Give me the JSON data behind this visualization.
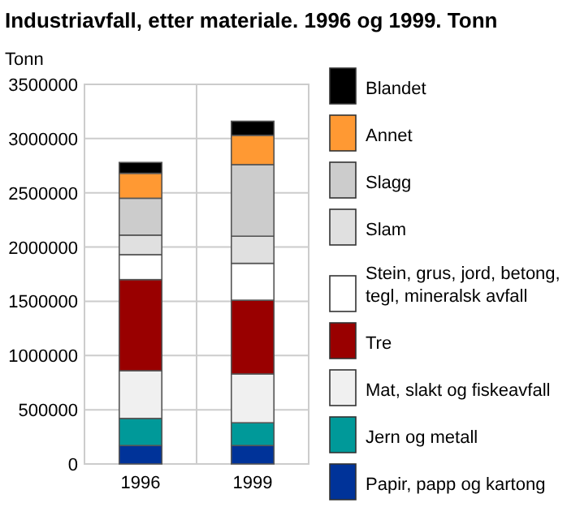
{
  "chart_data": {
    "type": "bar",
    "title": "Industriavfall, etter materiale. 1996 og 1999. Tonn",
    "ylabel": "Tonn",
    "categories": [
      "1996",
      "1999"
    ],
    "stacked": true,
    "grid": true,
    "legend": "right",
    "ylim": [
      0,
      3500000
    ],
    "yticks": [
      0,
      500000,
      1000000,
      1500000,
      2000000,
      2500000,
      3000000,
      3500000
    ],
    "series": [
      {
        "name": "Papir, papp og kartong",
        "color": "#003399",
        "values": [
          170000,
          170000
        ]
      },
      {
        "name": "Jern og metall",
        "color": "#009999",
        "values": [
          250000,
          210000
        ]
      },
      {
        "name": "Mat, slakt og fiskeavfall",
        "color": "#f0f0f0",
        "values": [
          440000,
          450000
        ]
      },
      {
        "name": "Tre",
        "color": "#990000",
        "values": [
          840000,
          680000
        ]
      },
      {
        "name": "Stein, grus, jord, betong, tegl, mineralsk avfall",
        "color": "#ffffff",
        "values": [
          230000,
          340000
        ]
      },
      {
        "name": "Slam",
        "color": "#e0e0e0",
        "values": [
          180000,
          250000
        ]
      },
      {
        "name": "Slagg",
        "color": "#cccccc",
        "values": [
          340000,
          660000
        ]
      },
      {
        "name": "Annet",
        "color": "#ff9933",
        "values": [
          230000,
          270000
        ]
      },
      {
        "name": "Blandet",
        "color": "#000000",
        "values": [
          100000,
          130000
        ]
      }
    ]
  }
}
